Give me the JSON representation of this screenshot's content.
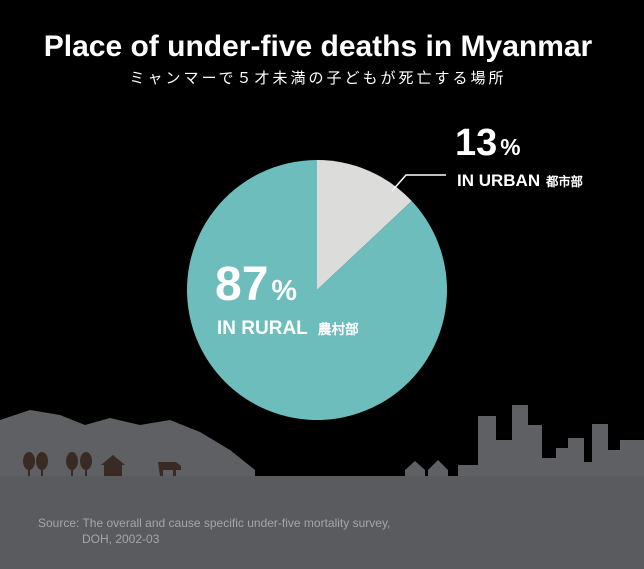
{
  "chart_data": {
    "type": "pie",
    "title": "Place of under-five deaths in Myanmar",
    "subtitle": "ミャンマーで５才未満の子どもが死亡する場所",
    "categories": [
      "IN URBAN",
      "IN RURAL"
    ],
    "category_notes": [
      "都市部",
      "農村部"
    ],
    "values": [
      13,
      87
    ],
    "value_labels": [
      "13%",
      "87%"
    ],
    "colors": [
      "#dcdcda",
      "#6dbdbd"
    ],
    "source": [
      "Source: The overall and cause specific under-five mortality survey,",
      "DOH, 2002-03"
    ]
  }
}
